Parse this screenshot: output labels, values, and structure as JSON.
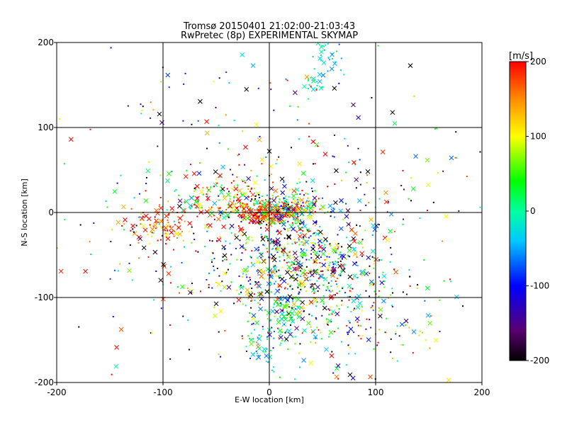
{
  "chart_data": {
    "type": "scatter",
    "title": "Tromsø 20150401 21:02:00-21:03:43",
    "subtitle": "RwPretec (8p) EXPERIMENTAL SKYMAP",
    "xlabel": "E-W location [km]",
    "ylabel": "N-S location [km]",
    "xlim": [
      -200,
      200
    ],
    "ylim": [
      -200,
      200
    ],
    "x_ticks": [
      "-200",
      "-100",
      "0",
      "100",
      "200"
    ],
    "y_ticks": [
      "-200",
      "-100",
      "0",
      "100",
      "200"
    ],
    "grid": true,
    "colorbar": {
      "label": "[m/s]",
      "range": [
        -200,
        200
      ],
      "ticks": [
        "200",
        "100",
        "0",
        "-100",
        "-200"
      ],
      "colormap": "rainbow"
    },
    "markers": [
      "x",
      "dot"
    ],
    "clusters": [
      {
        "x": 0,
        "y": 0,
        "sx": 14,
        "sy": 6,
        "n": 170,
        "v": 190,
        "sv": 30
      },
      {
        "x": 20,
        "y": 5,
        "sx": 14,
        "sy": 10,
        "n": 160,
        "v": 35,
        "sv": 110
      },
      {
        "x": -40,
        "y": 15,
        "sx": 30,
        "sy": 14,
        "n": 180,
        "v": 110,
        "sv": 110
      },
      {
        "x": -100,
        "y": -12,
        "sx": 16,
        "sy": 12,
        "n": 90,
        "v": 170,
        "sv": 50
      },
      {
        "x": 55,
        "y": 185,
        "sx": 7,
        "sy": 14,
        "n": 35,
        "v": -35,
        "sv": 25
      },
      {
        "x": 42,
        "y": 150,
        "sx": 6,
        "sy": 6,
        "n": 15,
        "v": -15,
        "sv": 20
      },
      {
        "x": 25,
        "y": -50,
        "sx": 40,
        "sy": 35,
        "n": 550,
        "v": -20,
        "sv": 150
      },
      {
        "x": 55,
        "y": -110,
        "sx": 50,
        "sy": 40,
        "n": 300,
        "v": 0,
        "sv": 140
      },
      {
        "x": 15,
        "y": -125,
        "sx": 10,
        "sy": 15,
        "n": 60,
        "v": 20,
        "sv": 40
      },
      {
        "x": -10,
        "y": -160,
        "sx": 12,
        "sy": 15,
        "n": 40,
        "v": -20,
        "sv": 40
      },
      {
        "x": 0,
        "y": 0,
        "sx": 110,
        "sy": 100,
        "n": 450,
        "v": 0,
        "sv": 170
      }
    ]
  }
}
